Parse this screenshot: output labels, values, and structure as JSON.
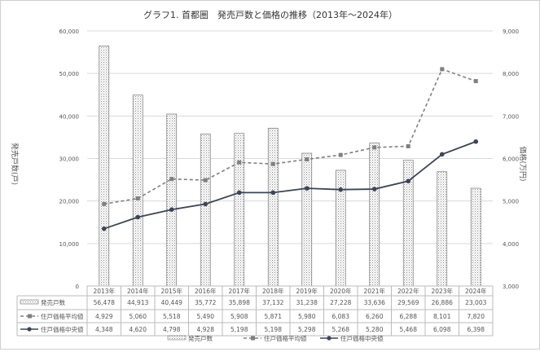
{
  "chart_data": {
    "type": "bar+line",
    "title": "グラフ1. 首都圏　発売戸数と価格の推移（2013年～2024年）",
    "categories": [
      "2013年",
      "2014年",
      "2015年",
      "2016年",
      "2017年",
      "2018年",
      "2019年",
      "2020年",
      "2021年",
      "2022年",
      "2023年",
      "2024年"
    ],
    "left_axis": {
      "label": "発売戸数(戸)",
      "range": [
        0,
        60000
      ],
      "ticks": [
        "0",
        "10,000",
        "20,000",
        "30,000",
        "40,000",
        "50,000",
        "60,000"
      ]
    },
    "right_axis": {
      "label": "価格(万円)",
      "range": [
        3000,
        9000
      ],
      "ticks": [
        "3,000",
        "4,000",
        "5,000",
        "6,000",
        "7,000",
        "8,000",
        "9,000"
      ]
    },
    "series": [
      {
        "name": "発売戸数",
        "type": "bar",
        "axis": "left",
        "values": [
          56478,
          44913,
          40449,
          35772,
          35898,
          37132,
          31238,
          27228,
          33636,
          29569,
          26886,
          23003
        ],
        "labels": [
          "56,478",
          "44,913",
          "40,449",
          "35,772",
          "35,898",
          "37,132",
          "31,238",
          "27,228",
          "33,636",
          "29,569",
          "26,886",
          "23,003"
        ]
      },
      {
        "name": "住戸価格平均値",
        "type": "line-dashed",
        "axis": "right",
        "color": "#808080",
        "values": [
          4929,
          5060,
          5518,
          5490,
          5908,
          5871,
          5980,
          6083,
          6260,
          6288,
          8101,
          7820
        ],
        "labels": [
          "4,929",
          "5,060",
          "5,518",
          "5,490",
          "5,908",
          "5,871",
          "5,980",
          "6,083",
          "6,260",
          "6,288",
          "8,101",
          "7,820"
        ]
      },
      {
        "name": "住戸価格中央値",
        "type": "line",
        "axis": "right",
        "color": "#3b4556",
        "values": [
          4348,
          4620,
          4798,
          4928,
          5198,
          5198,
          5298,
          5268,
          5280,
          5468,
          6098,
          6398
        ],
        "labels": [
          "4,348",
          "4,620",
          "4,798",
          "4,928",
          "5,198",
          "5,198",
          "5,298",
          "5,268",
          "5,280",
          "5,468",
          "6,098",
          "6,398"
        ]
      }
    ],
    "grid": true,
    "legend": "bottom",
    "data_table": true
  }
}
